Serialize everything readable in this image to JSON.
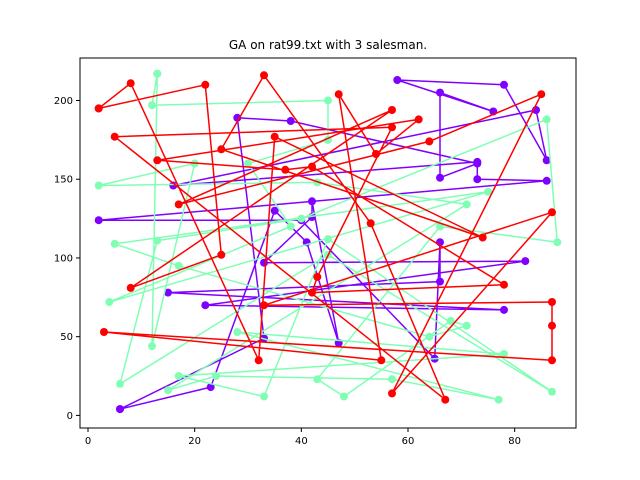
{
  "chart_data": {
    "type": "line",
    "title": "GA on rat99.txt with 3 salesman.",
    "xlabel": "",
    "ylabel": "",
    "xlim": [
      -1.5,
      91.5
    ],
    "ylim": [
      -8,
      227
    ],
    "xticks": [
      0,
      20,
      40,
      60,
      80
    ],
    "yticks": [
      0,
      50,
      100,
      150,
      200
    ],
    "grid": false,
    "series": [
      {
        "color": "#8000ff",
        "points": [
          [
            6,
            4
          ],
          [
            23,
            18
          ],
          [
            35,
            130
          ],
          [
            41,
            110
          ],
          [
            47,
            46
          ],
          [
            42,
            136
          ],
          [
            42,
            126
          ],
          [
            33,
            97
          ],
          [
            82,
            98
          ],
          [
            22,
            70
          ],
          [
            78,
            67
          ],
          [
            15,
            78
          ],
          [
            66,
            85
          ],
          [
            66,
            110
          ],
          [
            65,
            36
          ],
          [
            40,
            124
          ],
          [
            2,
            124
          ],
          [
            86,
            149
          ],
          [
            73,
            150
          ],
          [
            73,
            161
          ],
          [
            16,
            146
          ],
          [
            84,
            194
          ],
          [
            86,
            162
          ],
          [
            78,
            210
          ],
          [
            58,
            213
          ],
          [
            76,
            193
          ],
          [
            66,
            205
          ],
          [
            66,
            151
          ],
          [
            73,
            160
          ],
          [
            38,
            187
          ],
          [
            28,
            189
          ],
          [
            33,
            49
          ],
          [
            6,
            4
          ]
        ]
      },
      {
        "color": "#80ffb4",
        "points": [
          [
            13,
            217
          ],
          [
            12,
            44
          ],
          [
            20,
            160
          ],
          [
            2,
            146
          ],
          [
            43,
            148
          ],
          [
            71,
            134
          ],
          [
            15,
            16
          ],
          [
            24,
            25
          ],
          [
            57,
            23
          ],
          [
            77,
            10
          ],
          [
            28,
            53
          ],
          [
            78,
            39
          ],
          [
            17,
            25
          ],
          [
            33,
            12
          ],
          [
            45,
            112
          ],
          [
            87,
            15
          ],
          [
            45,
            102
          ],
          [
            6,
            20
          ],
          [
            13,
            111
          ],
          [
            40,
            125
          ],
          [
            86,
            188
          ],
          [
            88,
            110
          ],
          [
            66,
            120
          ],
          [
            43,
            23
          ],
          [
            48,
            12
          ],
          [
            68,
            60
          ],
          [
            71,
            57
          ],
          [
            64,
            50
          ],
          [
            17,
            95
          ],
          [
            5,
            109
          ],
          [
            75,
            142
          ],
          [
            4,
            72
          ],
          [
            38,
            120
          ],
          [
            30,
            160
          ],
          [
            45,
            175
          ],
          [
            45,
            200
          ],
          [
            12,
            197
          ],
          [
            13,
            217
          ]
        ]
      },
      {
        "color": "#ff0000",
        "points": [
          [
            2,
            195
          ],
          [
            22,
            210
          ],
          [
            25,
            102
          ],
          [
            8,
            81
          ],
          [
            57,
            194
          ],
          [
            17,
            134
          ],
          [
            64,
            174
          ],
          [
            85,
            204
          ],
          [
            57,
            14
          ],
          [
            87,
            129
          ],
          [
            33,
            70
          ],
          [
            87,
            72
          ],
          [
            87,
            57
          ],
          [
            87,
            35
          ],
          [
            3,
            53
          ],
          [
            55,
            35
          ],
          [
            47,
            204
          ],
          [
            54,
            166
          ],
          [
            62,
            188
          ],
          [
            13,
            162
          ],
          [
            37,
            156
          ],
          [
            42,
            158
          ],
          [
            78,
            83
          ],
          [
            42,
            78
          ],
          [
            43,
            88
          ],
          [
            57,
            183
          ],
          [
            5,
            177
          ],
          [
            67,
            10
          ],
          [
            53,
            122
          ],
          [
            33,
            216
          ],
          [
            25,
            169
          ],
          [
            74,
            113
          ],
          [
            35,
            177
          ],
          [
            32,
            35
          ],
          [
            8,
            211
          ],
          [
            2,
            195
          ]
        ]
      }
    ]
  }
}
